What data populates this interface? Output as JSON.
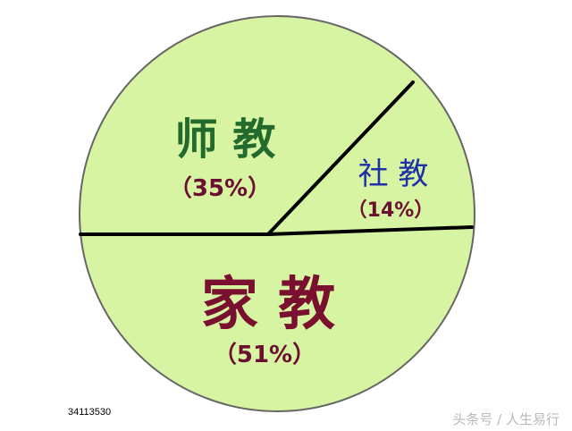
{
  "chart_data": {
    "type": "pie",
    "title": "",
    "slices": [
      {
        "label": "师 教",
        "percent_label": "（35%）",
        "value": 35
      },
      {
        "label": "社 教",
        "percent_label": "（14%）",
        "value": 14
      },
      {
        "label": "家 教",
        "percent_label": "（51%）",
        "value": 51
      }
    ],
    "colors": {
      "fill": "#d6f4a2",
      "outline": "#666666",
      "divider": "#000000",
      "label_shijiao": "#226b2c",
      "label_shejiao": "#1f2fa8",
      "label_jiajiao": "#7a1030",
      "percent_dark": "#6b1030"
    }
  },
  "footer": {
    "id_text": "34113530",
    "watermark": "头条号 / 人生易行"
  }
}
